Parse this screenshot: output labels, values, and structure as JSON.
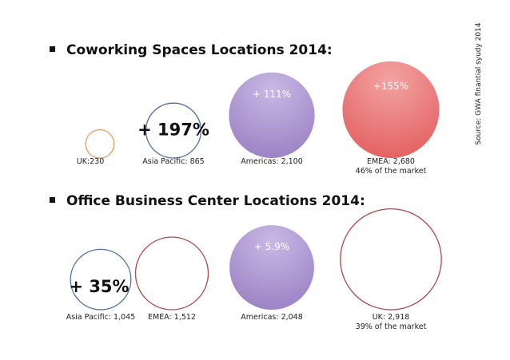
{
  "source_note": "Source: GWA finantial syudy 2014",
  "colors": {
    "orange_outline": "#E59B5A",
    "blue_outline": "#4F6FA8",
    "red_outline": "#B04848",
    "purple_fill": "#9A80C4",
    "purple_fill_light": "#C9B8E4",
    "red_fill": "#E45E5E",
    "red_fill_light": "#F2A3A3"
  },
  "chart_data": [
    {
      "type": "bubble",
      "title": "Coworking Spaces Locations 2014:",
      "series": [
        {
          "region": "UK",
          "label": "UK:230",
          "value": 230,
          "growth": "",
          "style": "outline",
          "color_key": "orange_outline"
        },
        {
          "region": "Asia Pacific",
          "label": "Asia Pacific: 865",
          "value": 865,
          "growth": "+ 197%",
          "style": "outline",
          "color_key": "blue_outline"
        },
        {
          "region": "Americas",
          "label": "Americas: 2,100",
          "value": 2100,
          "growth": "+ 111%",
          "style": "filled",
          "color_key": "purple_fill"
        },
        {
          "region": "EMEA",
          "label": "EMEA: 2,680",
          "value": 2680,
          "growth": "+155%",
          "note": "46% of the market",
          "style": "filled",
          "color_key": "red_fill"
        }
      ]
    },
    {
      "type": "bubble",
      "title": "Office Business Center Locations 2014:",
      "series": [
        {
          "region": "Asia Pacific",
          "label": "Asia Pacific: 1,045",
          "value": 1045,
          "growth": "+ 35%",
          "style": "outline",
          "color_key": "blue_outline"
        },
        {
          "region": "EMEA",
          "label": "EMEA: 1,512",
          "value": 1512,
          "growth": "",
          "style": "outline",
          "color_key": "red_outline"
        },
        {
          "region": "Americas",
          "label": "Americas: 2,048",
          "value": 2048,
          "growth": "+ 5.9%",
          "style": "filled",
          "color_key": "purple_fill"
        },
        {
          "region": "UK",
          "label": "UK: 2,918",
          "value": 2918,
          "growth": "",
          "note": "39% of the market",
          "style": "outline",
          "color_key": "red_outline"
        }
      ]
    }
  ]
}
